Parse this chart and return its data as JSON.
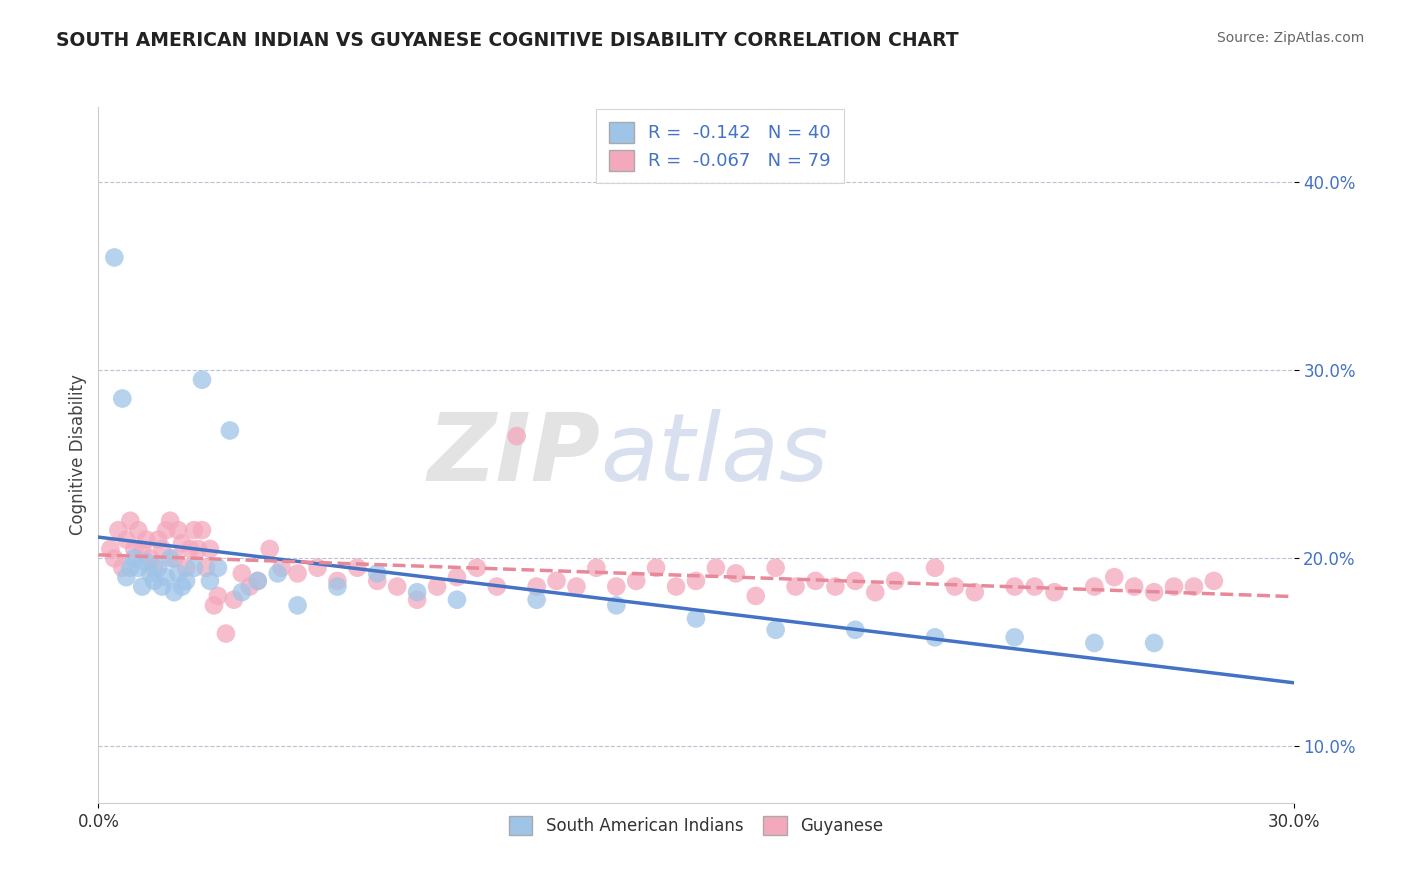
{
  "title": "SOUTH AMERICAN INDIAN VS GUYANESE COGNITIVE DISABILITY CORRELATION CHART",
  "source": "Source: ZipAtlas.com",
  "ylabel": "Cognitive Disability",
  "y_ticks": [
    0.1,
    0.2,
    0.3,
    0.4
  ],
  "y_tick_labels": [
    "10.0%",
    "20.0%",
    "30.0%",
    "40.0%"
  ],
  "xlim": [
    0.0,
    0.3
  ],
  "ylim": [
    0.07,
    0.44
  ],
  "blue_R": -0.142,
  "blue_N": 40,
  "pink_R": -0.067,
  "pink_N": 79,
  "blue_color": "#9ec4e8",
  "pink_color": "#f4a8bc",
  "blue_line_color": "#4472c4",
  "pink_line_color": "#e8899a",
  "background_color": "#ffffff",
  "blue_points_x": [
    0.004,
    0.006,
    0.007,
    0.008,
    0.009,
    0.01,
    0.011,
    0.012,
    0.013,
    0.014,
    0.015,
    0.016,
    0.017,
    0.018,
    0.019,
    0.02,
    0.021,
    0.022,
    0.024,
    0.026,
    0.028,
    0.03,
    0.033,
    0.036,
    0.04,
    0.045,
    0.05,
    0.06,
    0.07,
    0.08,
    0.09,
    0.11,
    0.13,
    0.15,
    0.17,
    0.19,
    0.21,
    0.23,
    0.25,
    0.265
  ],
  "blue_points_y": [
    0.36,
    0.285,
    0.19,
    0.195,
    0.2,
    0.195,
    0.185,
    0.198,
    0.192,
    0.188,
    0.195,
    0.185,
    0.19,
    0.2,
    0.182,
    0.192,
    0.185,
    0.188,
    0.195,
    0.295,
    0.188,
    0.195,
    0.268,
    0.182,
    0.188,
    0.192,
    0.175,
    0.185,
    0.192,
    0.182,
    0.178,
    0.178,
    0.175,
    0.168,
    0.162,
    0.162,
    0.158,
    0.158,
    0.155,
    0.155
  ],
  "pink_points_x": [
    0.003,
    0.004,
    0.005,
    0.006,
    0.007,
    0.008,
    0.009,
    0.01,
    0.011,
    0.012,
    0.013,
    0.014,
    0.015,
    0.016,
    0.017,
    0.018,
    0.019,
    0.02,
    0.021,
    0.022,
    0.023,
    0.024,
    0.025,
    0.026,
    0.027,
    0.028,
    0.029,
    0.03,
    0.032,
    0.034,
    0.036,
    0.038,
    0.04,
    0.043,
    0.046,
    0.05,
    0.055,
    0.06,
    0.065,
    0.07,
    0.075,
    0.08,
    0.085,
    0.09,
    0.095,
    0.1,
    0.105,
    0.11,
    0.115,
    0.12,
    0.125,
    0.13,
    0.135,
    0.14,
    0.145,
    0.15,
    0.155,
    0.16,
    0.165,
    0.17,
    0.175,
    0.18,
    0.185,
    0.19,
    0.195,
    0.2,
    0.21,
    0.215,
    0.22,
    0.23,
    0.235,
    0.24,
    0.25,
    0.255,
    0.26,
    0.265,
    0.27,
    0.275,
    0.28
  ],
  "pink_points_y": [
    0.205,
    0.2,
    0.215,
    0.195,
    0.21,
    0.22,
    0.205,
    0.215,
    0.205,
    0.21,
    0.2,
    0.195,
    0.21,
    0.205,
    0.215,
    0.22,
    0.2,
    0.215,
    0.208,
    0.195,
    0.205,
    0.215,
    0.205,
    0.215,
    0.195,
    0.205,
    0.175,
    0.18,
    0.16,
    0.178,
    0.192,
    0.185,
    0.188,
    0.205,
    0.195,
    0.192,
    0.195,
    0.188,
    0.195,
    0.188,
    0.185,
    0.178,
    0.185,
    0.19,
    0.195,
    0.185,
    0.265,
    0.185,
    0.188,
    0.185,
    0.195,
    0.185,
    0.188,
    0.195,
    0.185,
    0.188,
    0.195,
    0.192,
    0.18,
    0.195,
    0.185,
    0.188,
    0.185,
    0.188,
    0.182,
    0.188,
    0.195,
    0.185,
    0.182,
    0.185,
    0.185,
    0.182,
    0.185,
    0.19,
    0.185,
    0.182,
    0.185,
    0.185,
    0.188
  ]
}
